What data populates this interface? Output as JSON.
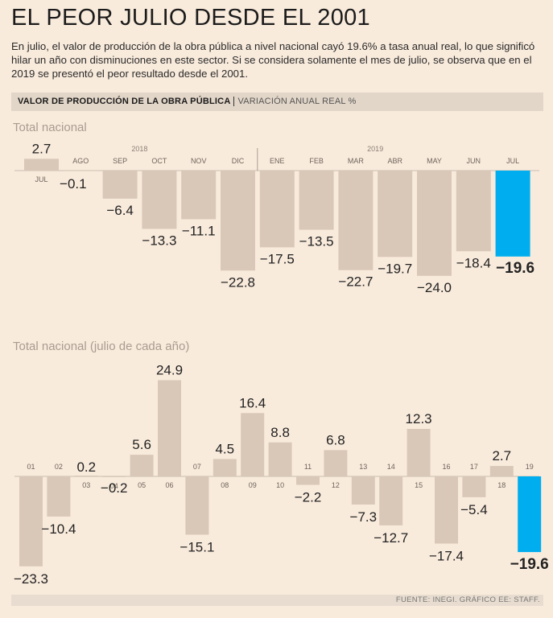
{
  "headline": "EL PEOR JULIO DESDE EL 2001",
  "intro": "En julio, el valor de producción de la obra pública a nivel nacional cayó 19.6% a tasa anual real, lo que significó hilar un año con disminuciones en este sector. Si se considera solamente el mes de julio, se observa que en el 2019 se presentó el peor resultado desde el 2001.",
  "section": {
    "title": "VALOR DE PRODUCCIÓN DE LA OBRA PÚBLICA",
    "subtitle": "VARIACIÓN ANUAL REAL %"
  },
  "source": "FUENTE: INEGI. GRÁFICO EE: STAFF.",
  "colors": {
    "bar": "#d9c8b8",
    "highlight": "#00aeef",
    "background": "#f9ebdc"
  },
  "chart_data": [
    {
      "type": "bar",
      "title": "Total nacional",
      "year_labels": [
        "2018",
        "2019"
      ],
      "categories": [
        "JUL",
        "AGO",
        "SEP",
        "OCT",
        "NOV",
        "DIC",
        "ENE",
        "FEB",
        "MAR",
        "ABR",
        "MAY",
        "JUN",
        "JUL"
      ],
      "values": [
        2.7,
        -0.1,
        -6.4,
        -13.3,
        -11.1,
        -22.8,
        -17.5,
        -13.5,
        -22.7,
        -19.7,
        -24.0,
        -18.4,
        -19.6
      ],
      "value_labels": [
        "2.7",
        "−0.1",
        "−6.4",
        "−13.3",
        "−11.1",
        "−22.8",
        "−17.5",
        "−13.5",
        "−22.7",
        "−19.7",
        "−24.0",
        "−18.4",
        "−19.6"
      ],
      "highlight_index": 12,
      "ylim": [
        -26,
        4
      ]
    },
    {
      "type": "bar",
      "title": "Total nacional (julio de cada año)",
      "categories": [
        "01",
        "02",
        "03",
        "04",
        "05",
        "06",
        "07",
        "08",
        "09",
        "10",
        "11",
        "12",
        "13",
        "14",
        "15",
        "16",
        "17",
        "18",
        "19"
      ],
      "values": [
        -23.3,
        -10.4,
        0.2,
        -0.2,
        5.6,
        24.9,
        -15.1,
        4.5,
        16.4,
        8.8,
        -2.2,
        6.8,
        -7.3,
        -12.7,
        12.3,
        -17.4,
        -5.4,
        2.7,
        -19.6
      ],
      "value_labels": [
        "−23.3",
        "−10.4",
        "0.2",
        "−0.2",
        "5.6",
        "24.9",
        "−15.1",
        "4.5",
        "16.4",
        "8.8",
        "−2.2",
        "6.8",
        "−7.3",
        "−12.7",
        "12.3",
        "−17.4",
        "−5.4",
        "2.7",
        "−19.6"
      ],
      "highlight_index": 18,
      "ylim": [
        -26,
        27
      ]
    }
  ]
}
